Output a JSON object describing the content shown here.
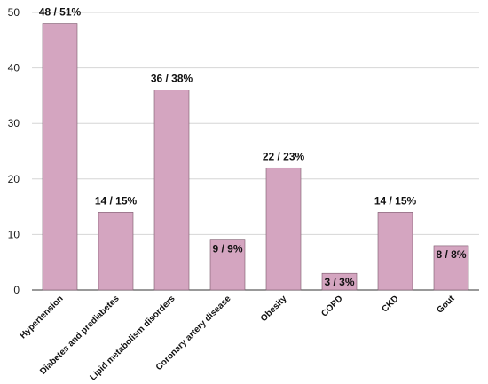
{
  "chart_data": {
    "type": "bar",
    "title": "",
    "xlabel": "",
    "ylabel": "",
    "categories": [
      "Hypertension",
      "Diabetes and prediabetes",
      "Lipid metabolism disorders",
      "Coronary artery disease",
      "Obesity",
      "COPD",
      "CKD",
      "Gout"
    ],
    "values": [
      48,
      14,
      36,
      9,
      22,
      3,
      14,
      8
    ],
    "data_labels": [
      "48 / 51%",
      "14 / 15%",
      "36 / 38%",
      "9 / 9%",
      "22 / 23%",
      "3 / 3%",
      "14 / 15%",
      "8 / 8%"
    ],
    "ylim": [
      0,
      50
    ],
    "yticks": [
      0,
      10,
      20,
      30,
      40,
      50
    ],
    "grid": true,
    "bar_color": "#d4a5c0"
  }
}
